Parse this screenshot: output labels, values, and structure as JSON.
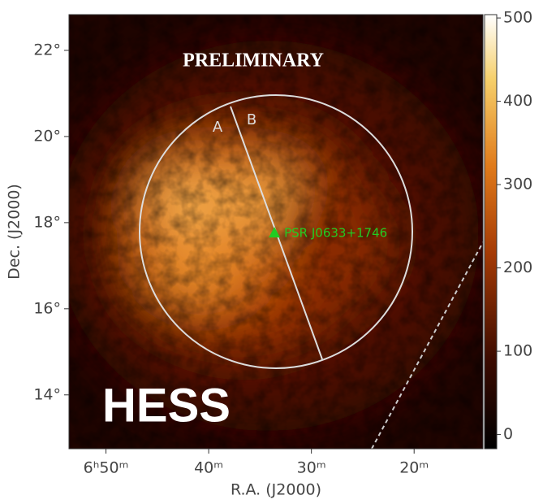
{
  "chart_data": {
    "type": "skymap",
    "xlabel": "R.A. (J2000)",
    "ylabel": "Dec. (J2000)",
    "xlim": [
      53.6,
      13.3
    ],
    "xticks": [
      {
        "value": 50,
        "label": "6ʰ50ᵐ"
      },
      {
        "value": 40,
        "label": "40ᵐ"
      },
      {
        "value": 30,
        "label": "30ᵐ"
      },
      {
        "value": 20,
        "label": "20ᵐ"
      }
    ],
    "ylim": [
      12.75,
      22.83
    ],
    "yticks": [
      {
        "value": 14,
        "label": "14°"
      },
      {
        "value": 16,
        "label": "16°"
      },
      {
        "value": 18,
        "label": "18°"
      },
      {
        "value": 20,
        "label": "20°"
      },
      {
        "value": 22,
        "label": "22°"
      }
    ],
    "colorbar_lim": [
      -17,
      504
    ],
    "colorbar_ticks": [
      0,
      100,
      200,
      300,
      400,
      500
    ],
    "annotations": [
      "PRELIMINARY",
      "HESS",
      "A",
      "B"
    ],
    "markers": [
      {
        "label": "PSR J0633+1746",
        "x": 33.6,
        "y": 17.75,
        "color": "#22cc22"
      }
    ]
  }
}
